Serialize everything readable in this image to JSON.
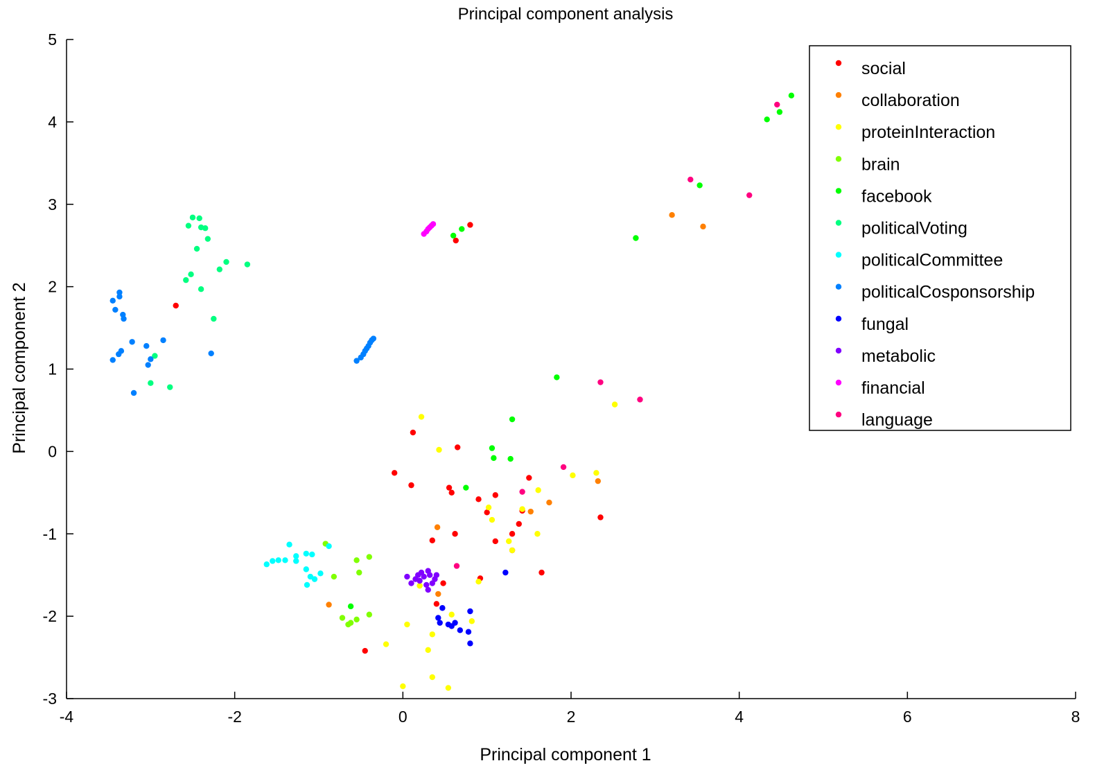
{
  "chart_data": {
    "type": "scatter",
    "title": "Principal component analysis",
    "xlabel": "Principal component 1",
    "ylabel": "Principal component 2",
    "xlim": [
      -4,
      8
    ],
    "ylim": [
      -3,
      5
    ],
    "xticks": [
      "-4",
      "-2",
      "0",
      "2",
      "4",
      "6",
      "8"
    ],
    "yticks": [
      "-3",
      "-2",
      "-1",
      "0",
      "1",
      "2",
      "3",
      "4",
      "5"
    ],
    "grid": false,
    "legend_position": "top-right",
    "series": [
      {
        "name": "social",
        "color": "#ff0000",
        "points": [
          [
            -2.7,
            1.77
          ],
          [
            0.12,
            0.23
          ],
          [
            0.65,
            0.05
          ],
          [
            -0.1,
            -0.26
          ],
          [
            0.1,
            -0.41
          ],
          [
            0.55,
            -0.44
          ],
          [
            0.58,
            -0.5
          ],
          [
            0.9,
            -0.58
          ],
          [
            1.0,
            -0.74
          ],
          [
            1.1,
            -0.53
          ],
          [
            1.5,
            -0.32
          ],
          [
            1.42,
            -0.72
          ],
          [
            1.38,
            -0.88
          ],
          [
            1.3,
            -1.0
          ],
          [
            1.3,
            -1.2
          ],
          [
            1.1,
            -1.09
          ],
          [
            0.62,
            -1.0
          ],
          [
            0.35,
            -1.08
          ],
          [
            0.92,
            -1.54
          ],
          [
            0.48,
            -1.6
          ],
          [
            0.4,
            -1.85
          ],
          [
            2.35,
            -0.8
          ],
          [
            1.65,
            -1.47
          ],
          [
            -0.45,
            -2.42
          ],
          [
            0.63,
            2.56
          ],
          [
            0.8,
            2.75
          ]
        ]
      },
      {
        "name": "collaboration",
        "color": "#ff8000",
        "points": [
          [
            3.2,
            2.87
          ],
          [
            3.57,
            2.73
          ],
          [
            1.74,
            -0.62
          ],
          [
            1.52,
            -0.73
          ],
          [
            2.32,
            -0.36
          ],
          [
            0.41,
            -0.92
          ],
          [
            0.42,
            -1.73
          ],
          [
            -0.88,
            -1.86
          ]
        ]
      },
      {
        "name": "proteinInteraction",
        "color": "#ffff00",
        "points": [
          [
            0.22,
            0.42
          ],
          [
            0.43,
            0.02
          ],
          [
            2.52,
            0.57
          ],
          [
            2.02,
            -0.29
          ],
          [
            2.3,
            -0.26
          ],
          [
            1.61,
            -0.47
          ],
          [
            1.02,
            -0.68
          ],
          [
            1.06,
            -0.83
          ],
          [
            1.42,
            -0.7
          ],
          [
            1.26,
            -1.09
          ],
          [
            1.6,
            -1.0
          ],
          [
            1.3,
            -1.2
          ],
          [
            0.9,
            -1.58
          ],
          [
            0.82,
            -2.06
          ],
          [
            0.58,
            -1.98
          ],
          [
            0.3,
            -2.41
          ],
          [
            0.35,
            -2.22
          ],
          [
            -0.2,
            -2.34
          ],
          [
            0.05,
            -2.1
          ],
          [
            0.35,
            -2.74
          ],
          [
            0.54,
            -2.87
          ],
          [
            0.0,
            -2.85
          ],
          [
            0.2,
            -1.63
          ]
        ]
      },
      {
        "name": "brain",
        "color": "#80ff00",
        "points": [
          [
            -0.92,
            -1.12
          ],
          [
            -0.82,
            -1.52
          ],
          [
            -0.55,
            -1.32
          ],
          [
            -0.4,
            -1.28
          ],
          [
            -0.52,
            -1.47
          ],
          [
            -0.72,
            -2.02
          ],
          [
            -0.62,
            -2.08
          ],
          [
            -0.55,
            -2.04
          ],
          [
            -0.4,
            -1.98
          ],
          [
            -0.65,
            -2.1
          ]
        ]
      },
      {
        "name": "facebook",
        "color": "#00ff00",
        "points": [
          [
            4.62,
            4.32
          ],
          [
            4.48,
            4.12
          ],
          [
            4.33,
            4.03
          ],
          [
            3.53,
            3.23
          ],
          [
            2.77,
            2.59
          ],
          [
            1.83,
            0.9
          ],
          [
            1.3,
            0.39
          ],
          [
            1.06,
            0.04
          ],
          [
            1.08,
            -0.08
          ],
          [
            1.28,
            -0.09
          ],
          [
            0.75,
            -0.44
          ],
          [
            -0.62,
            -1.88
          ],
          [
            0.6,
            2.62
          ],
          [
            0.7,
            2.7
          ]
        ]
      },
      {
        "name": "politicalVoting",
        "color": "#00ff80",
        "points": [
          [
            -2.55,
            2.74
          ],
          [
            -2.5,
            2.84
          ],
          [
            -2.42,
            2.83
          ],
          [
            -2.4,
            2.72
          ],
          [
            -2.35,
            2.71
          ],
          [
            -2.32,
            2.58
          ],
          [
            -2.45,
            2.46
          ],
          [
            -2.1,
            2.3
          ],
          [
            -2.18,
            2.21
          ],
          [
            -1.85,
            2.27
          ],
          [
            -2.52,
            2.15
          ],
          [
            -2.58,
            2.08
          ],
          [
            -2.4,
            1.97
          ],
          [
            -2.25,
            1.61
          ],
          [
            -2.95,
            1.16
          ],
          [
            -3.0,
            0.83
          ],
          [
            -2.77,
            0.78
          ]
        ]
      },
      {
        "name": "politicalCommittee",
        "color": "#00ffff",
        "points": [
          [
            -1.62,
            -1.37
          ],
          [
            -1.55,
            -1.33
          ],
          [
            -1.48,
            -1.32
          ],
          [
            -1.4,
            -1.32
          ],
          [
            -1.35,
            -1.13
          ],
          [
            -1.27,
            -1.27
          ],
          [
            -1.27,
            -1.33
          ],
          [
            -1.15,
            -1.24
          ],
          [
            -1.08,
            -1.25
          ],
          [
            -1.15,
            -1.43
          ],
          [
            -1.1,
            -1.52
          ],
          [
            -1.05,
            -1.55
          ],
          [
            -0.98,
            -1.48
          ],
          [
            -1.14,
            -1.62
          ],
          [
            -0.88,
            -1.15
          ]
        ]
      },
      {
        "name": "politicalCosponsorship",
        "color": "#0080ff",
        "points": [
          [
            -3.45,
            1.83
          ],
          [
            -3.37,
            1.88
          ],
          [
            -3.37,
            1.93
          ],
          [
            -3.42,
            1.72
          ],
          [
            -3.33,
            1.66
          ],
          [
            -3.32,
            1.61
          ],
          [
            -3.38,
            1.18
          ],
          [
            -3.35,
            1.22
          ],
          [
            -3.22,
            1.33
          ],
          [
            -3.05,
            1.28
          ],
          [
            -2.85,
            1.35
          ],
          [
            -3.45,
            1.11
          ],
          [
            -3.03,
            1.05
          ],
          [
            -3.0,
            1.12
          ],
          [
            -2.28,
            1.19
          ],
          [
            -3.2,
            0.71
          ],
          [
            -0.55,
            1.1
          ],
          [
            -0.5,
            1.14
          ],
          [
            -0.47,
            1.18
          ],
          [
            -0.45,
            1.22
          ],
          [
            -0.43,
            1.25
          ],
          [
            -0.41,
            1.28
          ],
          [
            -0.39,
            1.32
          ],
          [
            -0.37,
            1.35
          ],
          [
            -0.35,
            1.37
          ]
        ]
      },
      {
        "name": "fungal",
        "color": "#0000ff",
        "points": [
          [
            1.22,
            -1.47
          ],
          [
            0.47,
            -1.9
          ],
          [
            0.42,
            -2.02
          ],
          [
            0.8,
            -1.94
          ],
          [
            0.44,
            -2.08
          ],
          [
            0.54,
            -2.1
          ],
          [
            0.62,
            -2.08
          ],
          [
            0.58,
            -2.12
          ],
          [
            0.68,
            -2.17
          ],
          [
            0.78,
            -2.19
          ],
          [
            0.8,
            -2.33
          ]
        ]
      },
      {
        "name": "metabolic",
        "color": "#8000ff",
        "points": [
          [
            0.05,
            -1.52
          ],
          [
            0.1,
            -1.6
          ],
          [
            0.15,
            -1.55
          ],
          [
            0.18,
            -1.5
          ],
          [
            0.22,
            -1.47
          ],
          [
            0.25,
            -1.52
          ],
          [
            0.3,
            -1.45
          ],
          [
            0.32,
            -1.5
          ],
          [
            0.38,
            -1.55
          ],
          [
            0.4,
            -1.5
          ],
          [
            0.35,
            -1.6
          ],
          [
            0.28,
            -1.62
          ],
          [
            0.2,
            -1.57
          ],
          [
            0.3,
            -1.68
          ]
        ]
      },
      {
        "name": "financial",
        "color": "#ff00ff",
        "points": [
          [
            0.25,
            2.64
          ],
          [
            0.28,
            2.67
          ],
          [
            0.3,
            2.7
          ],
          [
            0.32,
            2.72
          ],
          [
            0.34,
            2.74
          ],
          [
            0.36,
            2.76
          ]
        ]
      },
      {
        "name": "language",
        "color": "#ff0080",
        "points": [
          [
            4.45,
            4.21
          ],
          [
            3.42,
            3.3
          ],
          [
            4.12,
            3.11
          ],
          [
            2.35,
            0.84
          ],
          [
            2.82,
            0.63
          ],
          [
            1.91,
            -0.19
          ],
          [
            1.42,
            -0.49
          ],
          [
            0.64,
            -1.39
          ]
        ]
      }
    ]
  }
}
